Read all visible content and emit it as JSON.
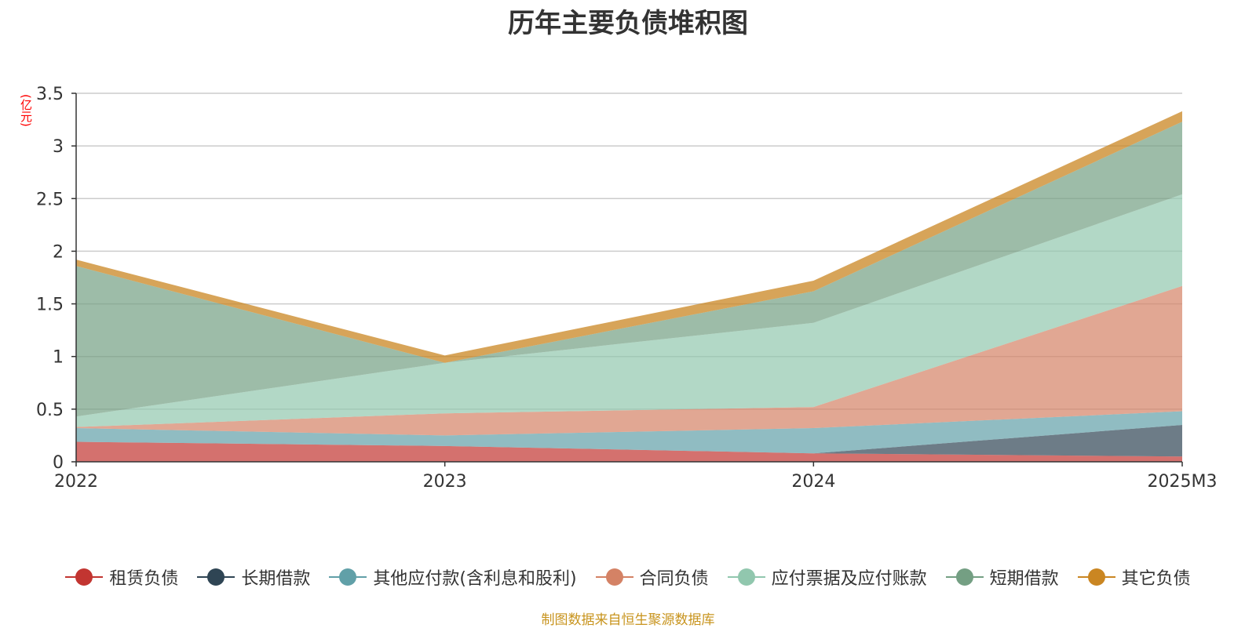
{
  "chart_data": {
    "type": "area",
    "stacked": true,
    "title": "历年主要负债堆积图",
    "ylabel": "(亿元)",
    "categories": [
      "2022",
      "2023",
      "2024",
      "2025M3"
    ],
    "ylim": [
      0,
      3.5
    ],
    "yticks": [
      "0",
      "0.5",
      "1",
      "1.5",
      "2",
      "2.5",
      "3",
      "3.5"
    ],
    "grid": true,
    "legend_position": "bottom",
    "series": [
      {
        "name": "租赁负债",
        "color": "#c23531",
        "values": [
          0.19,
          0.15,
          0.08,
          0.05
        ]
      },
      {
        "name": "长期借款",
        "color": "#2f4554",
        "values": [
          0.0,
          0.0,
          0.0,
          0.3
        ]
      },
      {
        "name": "其他应付款(含利息和股利)",
        "color": "#61a0a8",
        "values": [
          0.13,
          0.1,
          0.24,
          0.13
        ]
      },
      {
        "name": "合同负债",
        "color": "#d48265",
        "values": [
          0.01,
          0.21,
          0.2,
          1.19
        ]
      },
      {
        "name": "应付票据及应付账款",
        "color": "#91c7ae",
        "values": [
          0.1,
          0.48,
          0.8,
          0.87
        ]
      },
      {
        "name": "短期借款",
        "color": "#749f83",
        "values": [
          1.43,
          0.0,
          0.3,
          0.69
        ]
      },
      {
        "name": "其它负债",
        "color": "#ca8622",
        "values": [
          0.06,
          0.07,
          0.1,
          0.1
        ]
      }
    ]
  },
  "footer": "制图数据来自恒生聚源数据库"
}
